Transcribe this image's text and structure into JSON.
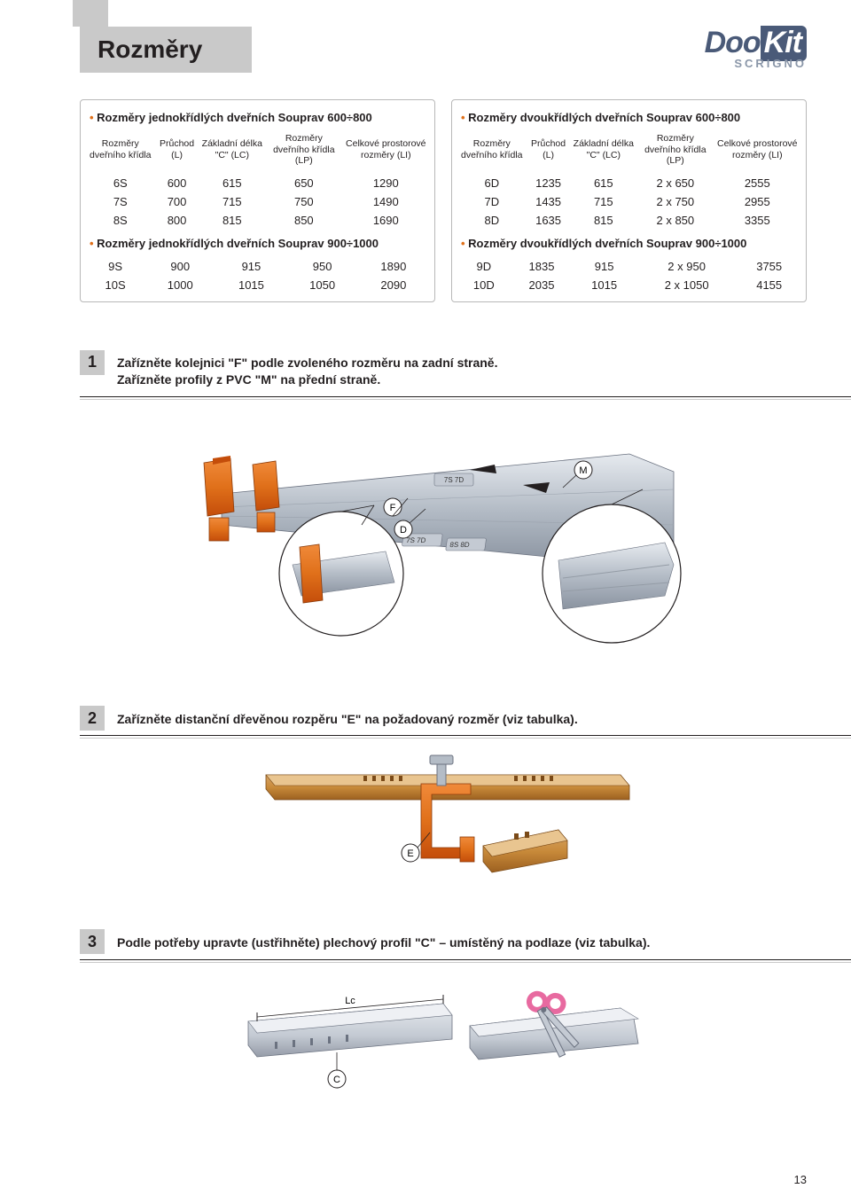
{
  "page_title": "Rozměry",
  "logo": {
    "part1": "Doo",
    "part2": "Kit",
    "sub": "SCRIGNO"
  },
  "page_number": "13",
  "tables": {
    "left": {
      "title1": "Rozměry jednokřídlých dveřních Souprav 600÷800",
      "title2": "Rozměry jednokřídlých dveřních Souprav 900÷1000",
      "headers": [
        "Rozměry dveřního křídla",
        "Průchod (L)",
        "Základní délka \"C\" (LC)",
        "Rozměry dveřního křídla (LP)",
        "Celkové prostorové rozměry (LI)"
      ],
      "rows1": [
        [
          "6S",
          "600",
          "615",
          "650",
          "1290"
        ],
        [
          "7S",
          "700",
          "715",
          "750",
          "1490"
        ],
        [
          "8S",
          "800",
          "815",
          "850",
          "1690"
        ]
      ],
      "rows2": [
        [
          "9S",
          "900",
          "915",
          "950",
          "1890"
        ],
        [
          "10S",
          "1000",
          "1015",
          "1050",
          "2090"
        ]
      ]
    },
    "right": {
      "title1": "Rozměry dvoukřídlých dveřních Souprav 600÷800",
      "title2": "Rozměry dvoukřídlých dveřních Souprav 900÷1000",
      "headers": [
        "Rozměry dveřního křídla",
        "Průchod (L)",
        "Základní délka \"C\" (LC)",
        "Rozměry dveřního křídla (LP)",
        "Celkové prostorové rozměry (LI)"
      ],
      "rows1": [
        [
          "6D",
          "1235",
          "615",
          "2 x 650",
          "2555"
        ],
        [
          "7D",
          "1435",
          "715",
          "2 x 750",
          "2955"
        ],
        [
          "8D",
          "1635",
          "815",
          "2 x 850",
          "3355"
        ]
      ],
      "rows2": [
        [
          "9D",
          "1835",
          "915",
          "2 x 950",
          "3755"
        ],
        [
          "10D",
          "2035",
          "1015",
          "2 x 1050",
          "4155"
        ]
      ]
    }
  },
  "steps": {
    "s1": {
      "num": "1",
      "line1": "Zařízněte kolejnici \"F\" podle zvoleného rozměru na zadní straně.",
      "line2": "Zařízněte profily z PVC \"M\" na přední straně.",
      "labels": {
        "F": "F",
        "D": "D",
        "M": "M",
        "topmark": "7S 7D",
        "botmark": "8S 8D",
        "bot2": "7S 7D"
      }
    },
    "s2": {
      "num": "2",
      "text": "Zařízněte distanční dřevěnou rozpěru \"E\" na požadovaný rozměr (viz tabulka).",
      "labels": {
        "E": "E"
      }
    },
    "s3": {
      "num": "3",
      "text": "Podle potřeby upravte (ustřihněte) plechový profil \"C\" – umístěný na podlaze (viz tabulka).",
      "labels": {
        "C": "C",
        "Lc": "Lc"
      }
    }
  },
  "colors": {
    "orange": "#e0701a",
    "orange_dark": "#c44d0a",
    "rail_light": "#d9dde2",
    "rail_mid": "#b4bcc6",
    "rail_dark": "#7d8796",
    "wood": "#c88a3a",
    "wood_dark": "#9c6020",
    "metal": "#c4cad3",
    "metal_dark": "#959ca8",
    "pink": "#e86aa0",
    "label_stroke": "#231f20"
  }
}
